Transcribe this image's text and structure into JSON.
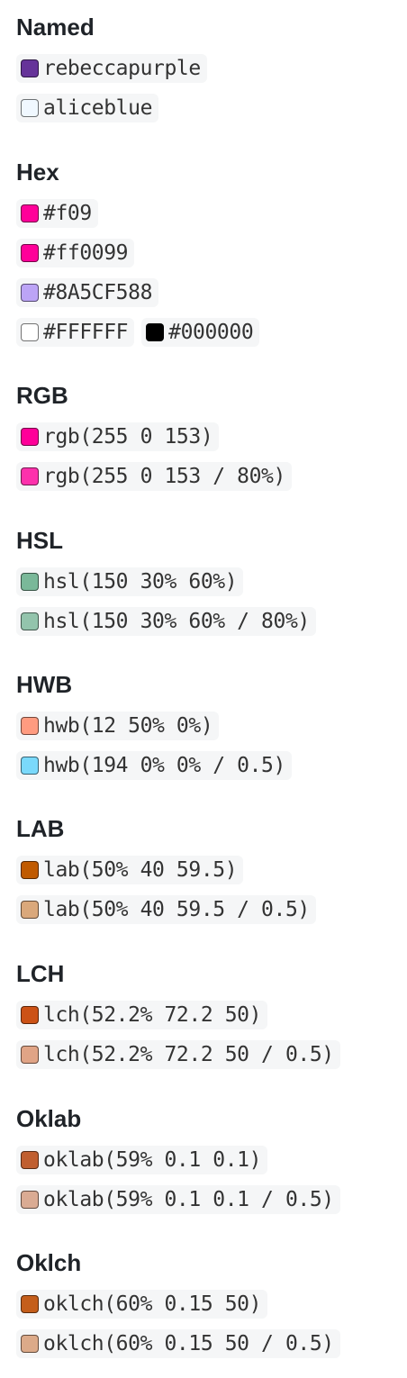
{
  "sections": [
    {
      "title": "Named",
      "rows": [
        [
          {
            "text": "rebeccapurple",
            "color": "#663399"
          }
        ],
        [
          {
            "text": "aliceblue",
            "color": "#F0F8FF"
          }
        ]
      ]
    },
    {
      "title": "Hex",
      "rows": [
        [
          {
            "text": "#f09",
            "color": "#ff0099"
          }
        ],
        [
          {
            "text": "#ff0099",
            "color": "#ff0099"
          }
        ],
        [
          {
            "text": "#8A5CF588",
            "color": "#8A5CF588"
          }
        ],
        [
          {
            "text": "#FFFFFF",
            "color": "#FFFFFF"
          },
          {
            "text": "#000000",
            "color": "#000000"
          }
        ]
      ]
    },
    {
      "title": "RGB",
      "rows": [
        [
          {
            "text": "rgb(255 0 153)",
            "color": "rgb(255 0 153)"
          }
        ],
        [
          {
            "text": "rgb(255 0 153 / 80%)",
            "color": "rgb(255 0 153 / 80%)"
          }
        ]
      ]
    },
    {
      "title": "HSL",
      "rows": [
        [
          {
            "text": "hsl(150 30% 60%)",
            "color": "hsl(150 30% 60%)"
          }
        ],
        [
          {
            "text": "hsl(150 30% 60% / 80%)",
            "color": "hsl(150 30% 60% / 80%)"
          }
        ]
      ]
    },
    {
      "title": "HWB",
      "rows": [
        [
          {
            "text": "hwb(12 50% 0%)",
            "color": "#ff9b80"
          }
        ],
        [
          {
            "text": "hwb(194 0% 0% / 0.5)",
            "color": "rgba(0, 187, 255, 0.5)"
          }
        ]
      ]
    },
    {
      "title": "LAB",
      "rows": [
        [
          {
            "text": "lab(50% 40 59.5)",
            "color": "#c05a00"
          }
        ],
        [
          {
            "text": "lab(50% 40 59.5 / 0.5)",
            "color": "rgba(192, 90, 0, 0.5)"
          }
        ]
      ]
    },
    {
      "title": "LCH",
      "rows": [
        [
          {
            "text": "lch(52.2% 72.2 50)",
            "color": "#cc5216"
          }
        ],
        [
          {
            "text": "lch(52.2% 72.2 50 / 0.5)",
            "color": "rgba(204, 82, 22, 0.5)"
          }
        ]
      ]
    },
    {
      "title": "Oklab",
      "rows": [
        [
          {
            "text": "oklab(59% 0.1 0.1)",
            "color": "#c05f30"
          }
        ],
        [
          {
            "text": "oklab(59% 0.1 0.1 / 0.5)",
            "color": "rgba(192, 95, 48, 0.5)"
          }
        ]
      ]
    },
    {
      "title": "Oklch",
      "rows": [
        [
          {
            "text": "oklch(60% 0.15 50)",
            "color": "#c45e1b"
          }
        ],
        [
          {
            "text": "oklch(60% 0.15 50 / 0.5)",
            "color": "rgba(196, 94, 27, 0.5)"
          }
        ]
      ]
    }
  ]
}
